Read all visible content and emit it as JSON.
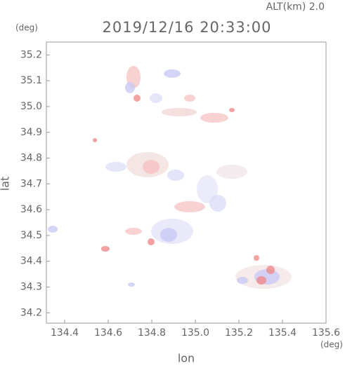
{
  "chart_data": {
    "type": "radar-map",
    "title": "2019/12/16 20:33:00",
    "subtitle": "ALT(km) 2.0",
    "x_label": "lon",
    "y_label": "lat",
    "x_unit": "(deg)",
    "y_unit": "(deg)",
    "xlim": [
      134.316,
      135.6
    ],
    "ylim": [
      34.16,
      35.25
    ],
    "xticks": [
      134.4,
      134.6,
      134.8,
      {
        "value": 135.0,
        "label": "135.0"
      },
      135.2,
      135.4,
      135.6
    ],
    "yticks": [
      34.2,
      34.3,
      34.4,
      34.5,
      34.6,
      34.7,
      34.8,
      34.9,
      {
        "value": 35.0,
        "label": "35.0"
      },
      35.1,
      35.2
    ]
  }
}
